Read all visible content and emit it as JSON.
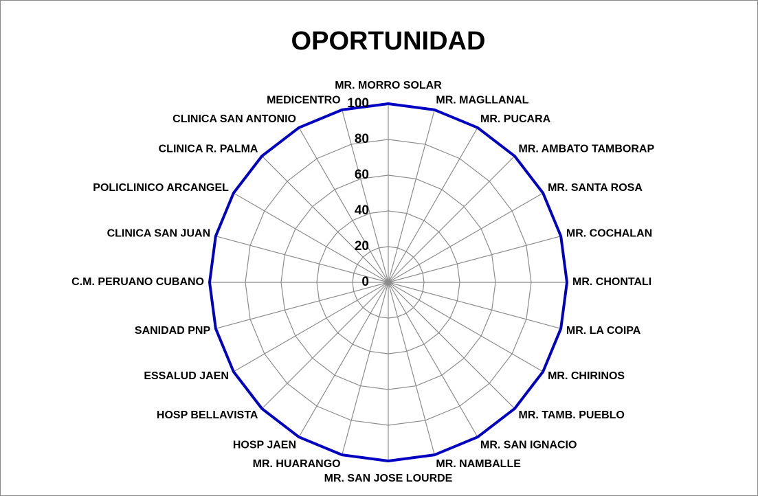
{
  "chart_data": {
    "type": "radar",
    "title": "OPORTUNIDAD",
    "categories": [
      "MR. MORRO SOLAR",
      "MR. MAGLLANAL",
      "MR. PUCARA",
      "MR. AMBATO TAMBORAP",
      "MR. SANTA ROSA",
      "MR. COCHALAN",
      "MR. CHONTALI",
      "MR. LA COIPA",
      "MR. CHIRINOS",
      "MR. TAMB. PUEBLO",
      "MR. SAN IGNACIO",
      "MR. NAMBALLE",
      "MR. SAN JOSE LOURDE",
      "MR. HUARANGO",
      "HOSP JAEN",
      "HOSP BELLAVISTA",
      "ESSALUD JAEN",
      "SANIDAD PNP",
      "C.M. PERUANO CUBANO",
      "CLINICA SAN JUAN",
      "POLICLINICO ARCANGEL",
      "CLINICA R. PALMA",
      "CLINICA SAN ANTONIO",
      "MEDICENTRO"
    ],
    "values": [
      100,
      100,
      100,
      100,
      100,
      100,
      100,
      100,
      100,
      100,
      100,
      100,
      100,
      100,
      100,
      100,
      100,
      100,
      100,
      100,
      100,
      100,
      100,
      100
    ],
    "color": "#0000c0",
    "ylim": [
      0,
      100
    ],
    "yticks": [
      0,
      20,
      40,
      60,
      80,
      100
    ],
    "grid": true
  }
}
